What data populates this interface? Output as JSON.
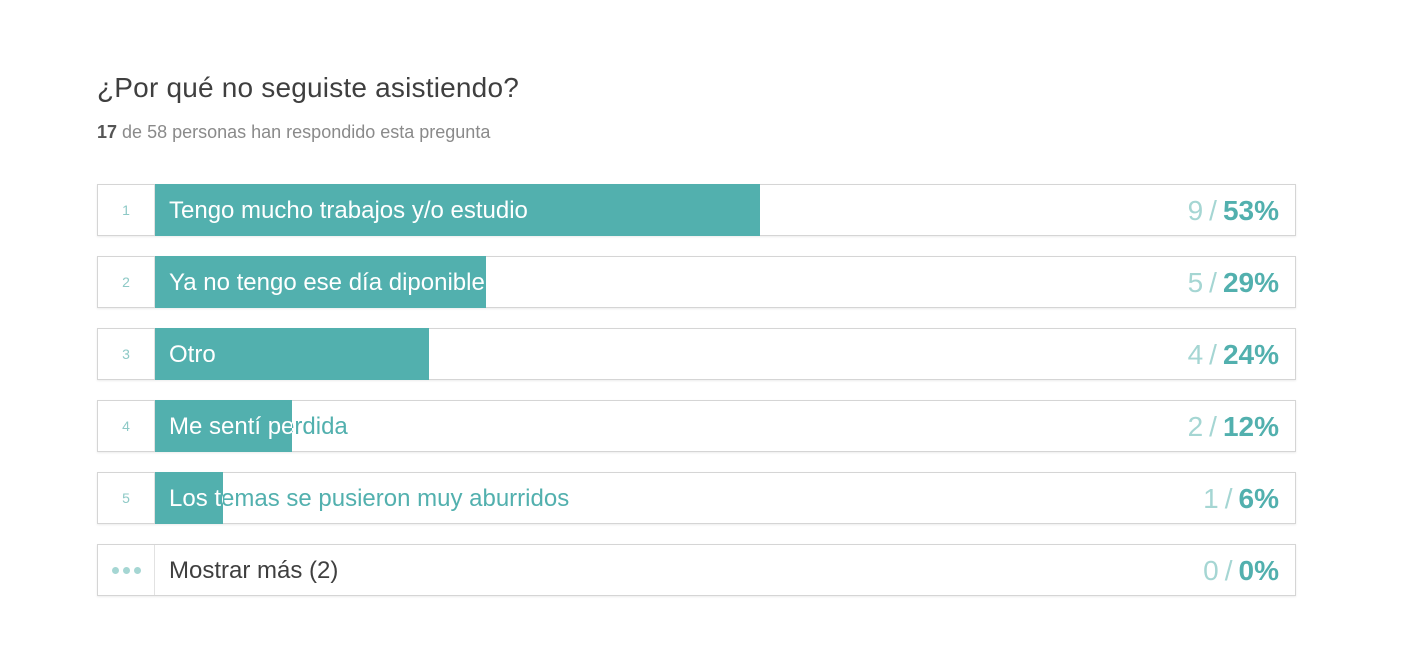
{
  "question": {
    "title": "¿Por qué no seguiste asistiendo?",
    "answered_count": "17",
    "answered_rest": "de 58 personas han respondido esta pregunta"
  },
  "colors": {
    "bar": "#52b0ae",
    "count": "#a5d6d3",
    "percent": "#52b0ae"
  },
  "chart_data": {
    "type": "bar",
    "orientation": "horizontal",
    "title": "¿Por qué no seguiste asistiendo?",
    "respondents": 17,
    "total": 58,
    "categories": [
      "Tengo mucho trabajos y/o estudio",
      "Ya no tengo ese día diponible",
      "Otro",
      "Me sentí perdida",
      "Los temas se pusieron muy aburridos"
    ],
    "values": [
      9,
      5,
      4,
      2,
      1
    ],
    "percent_labels": [
      "53%",
      "29%",
      "24%",
      "12%",
      "6%"
    ],
    "percent_values": [
      53,
      29,
      24,
      12,
      6
    ],
    "xlim": [
      0,
      100
    ]
  },
  "rows": [
    {
      "rank": "1",
      "label": "Tengo mucho trabajos y/o estudio",
      "count": "9",
      "sep": "/",
      "percent": "53%"
    },
    {
      "rank": "2",
      "label": "Ya no tengo ese día diponible",
      "count": "5",
      "sep": "/",
      "percent": "29%"
    },
    {
      "rank": "3",
      "label": "Otro",
      "count": "4",
      "sep": "/",
      "percent": "24%"
    },
    {
      "rank": "4",
      "label": "Me sentí perdida",
      "count": "2",
      "sep": "/",
      "percent": "12%"
    },
    {
      "rank": "5",
      "label": "Los temas se pusieron muy aburridos",
      "count": "1",
      "sep": "/",
      "percent": "6%"
    }
  ],
  "more": {
    "icon": "more-dots-icon",
    "label": "Mostrar más (2)",
    "count": "0",
    "sep": "/",
    "percent": "0%"
  }
}
